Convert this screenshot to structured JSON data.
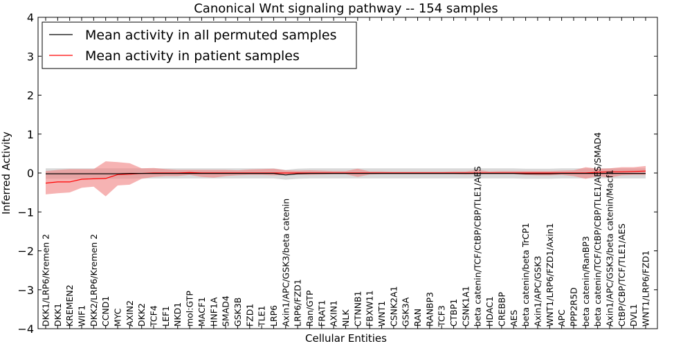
{
  "chart_data": {
    "type": "line",
    "title": "Canonical Wnt signaling pathway -- 154 samples",
    "xlabel": "Cellular Entities",
    "ylabel": "Inferred Activity",
    "ylim": [
      -4,
      4
    ],
    "yticks": [
      -4,
      -3,
      -2,
      -1,
      0,
      1,
      2,
      3,
      4
    ],
    "grid": false,
    "legend_location": "top-left",
    "categories": [
      "DKK1/LRP6/Kremen 2",
      "DKK1",
      "KREMEN2",
      "WIF1",
      "DKK2/LRP6/Kremen 2",
      "CCND1",
      "MYC",
      "AXIN2",
      "DKK2",
      "TCF4",
      "LEF1",
      "NKD1",
      "mol:GTP",
      "MACF1",
      "HNF1A",
      "SMAD4",
      "GSK3B",
      "FZD1",
      "TLE1",
      "LRP6",
      "Axin1/APC/GSK3/beta catenin",
      "LRP6/FZD1",
      "Ran/GTP",
      "FRAT1",
      "AXIN1",
      "NLK",
      "CTNNB1",
      "FBXW11",
      "WNT1",
      "CSNK2A1",
      "GSK3A",
      "RAN",
      "RANBP3",
      "TCF3",
      "CTBP1",
      "CSNK1A1",
      "beta catenin/TCF/CtBP/CBP/TLE1/AES",
      "HDAC1",
      "CREBBP",
      "AES",
      "beta catenin/beta TrCP1",
      "Axin1/APC/GSK3",
      "WNT1/LRP6/FZD1/Axin1",
      "APC",
      "PPP2R5D",
      "beta catenin/RanBP3",
      "beta catenin/TCF/CtBP/CBP/TLE1/AES/SMAD4",
      "Axin1/APC/GSK3/beta catenin/Macf1",
      "CtBP/CBP/TCF/TLE1/AES",
      "DVL1",
      "WNT1/LRP6/FZD1"
    ],
    "series": [
      {
        "name": "Mean activity in all permuted samples",
        "color": "#000000",
        "values": [
          -0.02,
          -0.02,
          -0.02,
          -0.02,
          -0.02,
          -0.02,
          -0.02,
          -0.01,
          -0.01,
          -0.01,
          -0.01,
          -0.01,
          -0.01,
          -0.01,
          -0.01,
          -0.01,
          -0.01,
          -0.01,
          -0.01,
          -0.01,
          -0.05,
          -0.02,
          -0.01,
          -0.01,
          -0.01,
          -0.01,
          -0.01,
          -0.01,
          -0.01,
          -0.01,
          -0.01,
          -0.01,
          -0.01,
          -0.01,
          -0.01,
          -0.01,
          -0.01,
          -0.01,
          -0.01,
          -0.01,
          -0.02,
          -0.02,
          -0.02,
          -0.01,
          -0.01,
          -0.01,
          -0.01,
          -0.01,
          -0.01,
          -0.01,
          -0.01
        ],
        "band_lower": [
          -0.15,
          -0.15,
          -0.15,
          -0.15,
          -0.15,
          -0.15,
          -0.15,
          -0.15,
          -0.14,
          -0.14,
          -0.14,
          -0.14,
          -0.14,
          -0.14,
          -0.14,
          -0.14,
          -0.14,
          -0.14,
          -0.14,
          -0.14,
          -0.17,
          -0.15,
          -0.14,
          -0.14,
          -0.14,
          -0.14,
          -0.14,
          -0.14,
          -0.14,
          -0.14,
          -0.14,
          -0.14,
          -0.14,
          -0.14,
          -0.14,
          -0.14,
          -0.14,
          -0.14,
          -0.14,
          -0.14,
          -0.15,
          -0.15,
          -0.15,
          -0.14,
          -0.14,
          -0.14,
          -0.14,
          -0.14,
          -0.14,
          -0.14,
          -0.14
        ],
        "band_upper": [
          0.12,
          0.12,
          0.12,
          0.12,
          0.12,
          0.12,
          0.12,
          0.12,
          0.12,
          0.12,
          0.12,
          0.12,
          0.12,
          0.12,
          0.12,
          0.12,
          0.12,
          0.12,
          0.12,
          0.12,
          0.08,
          0.11,
          0.12,
          0.12,
          0.12,
          0.12,
          0.12,
          0.12,
          0.12,
          0.12,
          0.12,
          0.12,
          0.12,
          0.12,
          0.12,
          0.12,
          0.12,
          0.12,
          0.12,
          0.12,
          0.11,
          0.11,
          0.11,
          0.12,
          0.12,
          0.12,
          0.12,
          0.12,
          0.12,
          0.12,
          0.12
        ]
      },
      {
        "name": "Mean activity in patient samples",
        "color": "#ff0000",
        "fill": "#f08080",
        "values": [
          -0.26,
          -0.23,
          -0.23,
          -0.16,
          -0.15,
          -0.14,
          -0.04,
          -0.03,
          -0.01,
          0.0,
          0.0,
          0.0,
          0.01,
          0.0,
          0.0,
          0.0,
          0.0,
          0.0,
          0.0,
          0.0,
          0.0,
          0.0,
          0.0,
          0.0,
          0.0,
          0.0,
          0.0,
          0.0,
          0.0,
          0.0,
          0.0,
          0.0,
          0.0,
          0.0,
          0.0,
          0.0,
          0.0,
          0.0,
          0.0,
          0.0,
          0.0,
          0.0,
          0.0,
          0.0,
          0.0,
          0.0,
          0.02,
          0.03,
          0.03,
          0.04,
          0.05
        ],
        "band_lower": [
          -0.55,
          -0.52,
          -0.5,
          -0.38,
          -0.35,
          -0.6,
          -0.32,
          -0.3,
          -0.15,
          -0.1,
          -0.08,
          -0.08,
          -0.05,
          -0.1,
          -0.12,
          -0.08,
          -0.06,
          -0.05,
          -0.05,
          -0.06,
          -0.05,
          -0.04,
          -0.05,
          -0.04,
          -0.03,
          -0.03,
          -0.1,
          -0.04,
          -0.03,
          -0.03,
          -0.03,
          -0.03,
          -0.03,
          -0.03,
          -0.03,
          -0.04,
          -0.03,
          -0.03,
          -0.03,
          -0.03,
          -0.05,
          -0.06,
          -0.06,
          -0.05,
          -0.08,
          -0.15,
          -0.08,
          -0.12,
          -0.06,
          -0.05,
          -0.05
        ],
        "band_upper": [
          0.05,
          0.08,
          0.1,
          0.1,
          0.1,
          0.3,
          0.28,
          0.25,
          0.12,
          0.13,
          0.1,
          0.08,
          0.08,
          0.08,
          0.08,
          0.08,
          0.07,
          0.09,
          0.1,
          0.11,
          0.07,
          0.06,
          0.07,
          0.06,
          0.05,
          0.05,
          0.11,
          0.04,
          0.04,
          0.03,
          0.03,
          0.03,
          0.03,
          0.03,
          0.04,
          0.04,
          0.08,
          0.04,
          0.05,
          0.05,
          0.05,
          0.05,
          0.05,
          0.06,
          0.07,
          0.15,
          0.11,
          0.12,
          0.15,
          0.15,
          0.18
        ]
      }
    ]
  }
}
